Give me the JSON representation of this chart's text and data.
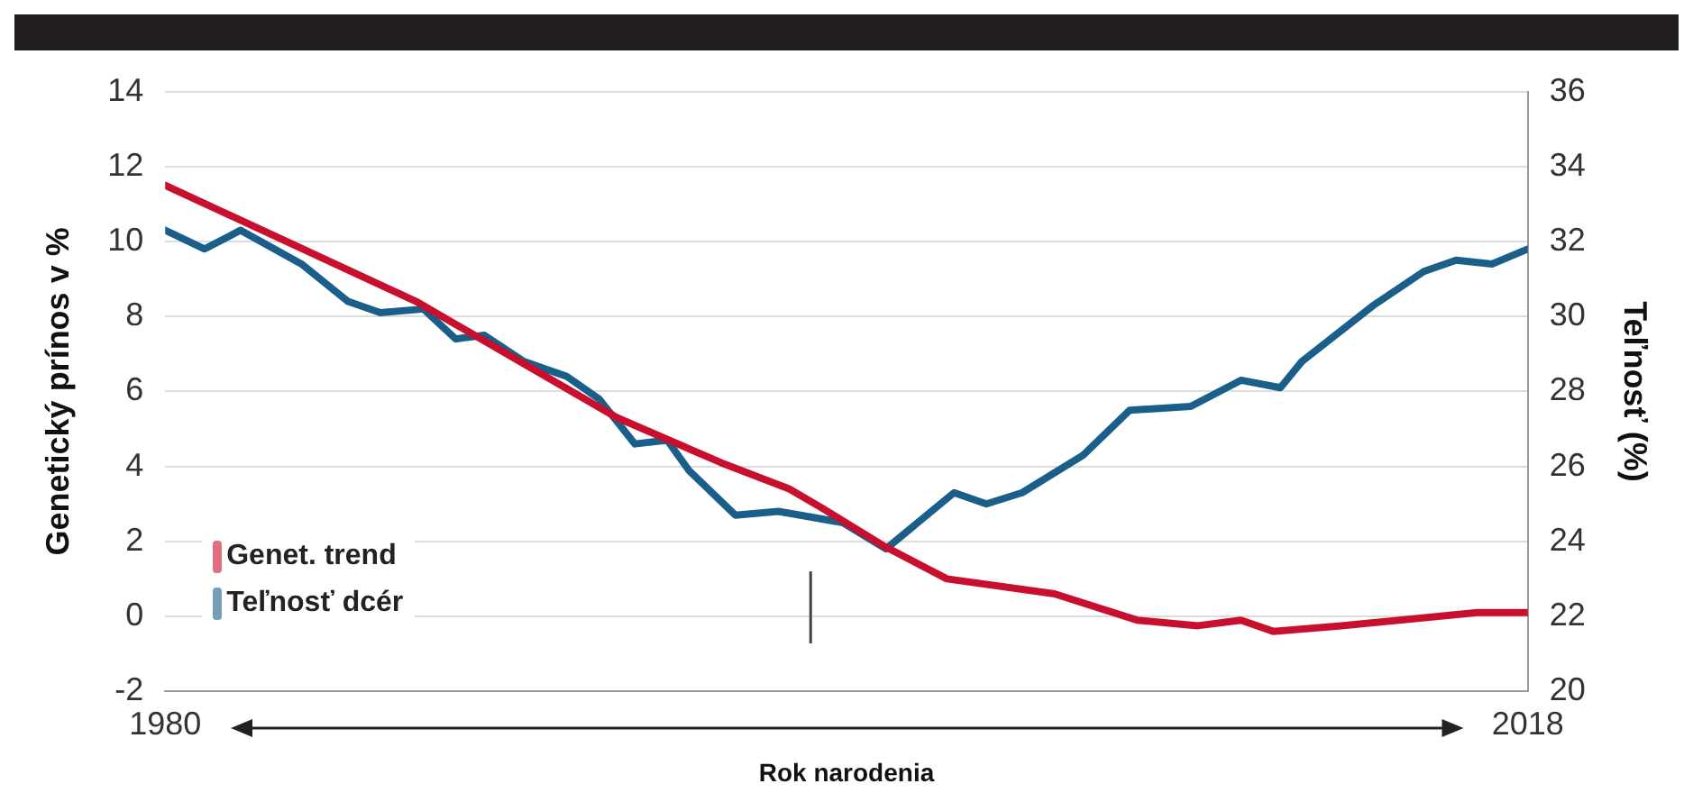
{
  "chart_data": {
    "type": "line",
    "xlabel": "Rok narodenia",
    "ylabel": "Genetický prínos v %",
    "y2label": "Teľnosť (%)",
    "xlim": [
      1980,
      2018
    ],
    "xticks": [
      1980,
      2018
    ],
    "ylim": [
      -2,
      14
    ],
    "yticks": [
      -2,
      0,
      2,
      4,
      6,
      8,
      10,
      12,
      14
    ],
    "y2lim": [
      20,
      36
    ],
    "y2ticks": [
      20,
      22,
      24,
      26,
      28,
      30,
      32,
      34,
      36
    ],
    "grid": "y",
    "legend": "bottom left",
    "marker": "none",
    "line_style": "solid",
    "ref_lines": [
      {
        "axis": "x",
        "value": 1998
      }
    ],
    "series": [
      {
        "name": "Genet. trend",
        "color": "#c8102e",
        "x": [
          1980,
          1987,
          1992.6,
          1995.5,
          1997.4,
          1998.3,
          2000,
          2001.8,
          2004.8,
          2007.1,
          2008.8,
          2010,
          2010.9,
          2012.8,
          2016.6,
          2018
        ],
        "values": [
          11.5,
          8.4,
          5.3,
          4.1,
          3.4,
          2.9,
          1.9,
          1.0,
          0.6,
          -0.1,
          -0.25,
          -0.1,
          -0.4,
          -0.25,
          0.1,
          0.1
        ]
      },
      {
        "name": "Teľnosť dcér",
        "color": "#1a5e8a",
        "axis": "y2",
        "x": [
          1980,
          1981.1,
          1982.1,
          1983.8,
          1985.1,
          1986,
          1987.2,
          1988.1,
          1988.9,
          1990,
          1991.2,
          1992.1,
          1993.1,
          1994,
          1994.6,
          1995.9,
          1997.1,
          1998.9,
          2000.1,
          2002,
          2002.9,
          2003.9,
          2005.6,
          2006.9,
          2008.6,
          2010,
          2011.1,
          2011.7,
          2013.7,
          2015.1,
          2016,
          2017,
          2018
        ],
        "values": [
          32.3,
          31.8,
          32.3,
          31.4,
          30.4,
          30.1,
          30.2,
          29.4,
          29.5,
          28.8,
          28.4,
          27.8,
          26.6,
          26.7,
          25.9,
          24.7,
          24.8,
          24.5,
          23.8,
          25.3,
          25.0,
          25.3,
          26.3,
          27.5,
          27.6,
          28.3,
          28.1,
          28.8,
          30.3,
          31.2,
          31.5,
          31.4,
          31.8
        ]
      }
    ]
  }
}
